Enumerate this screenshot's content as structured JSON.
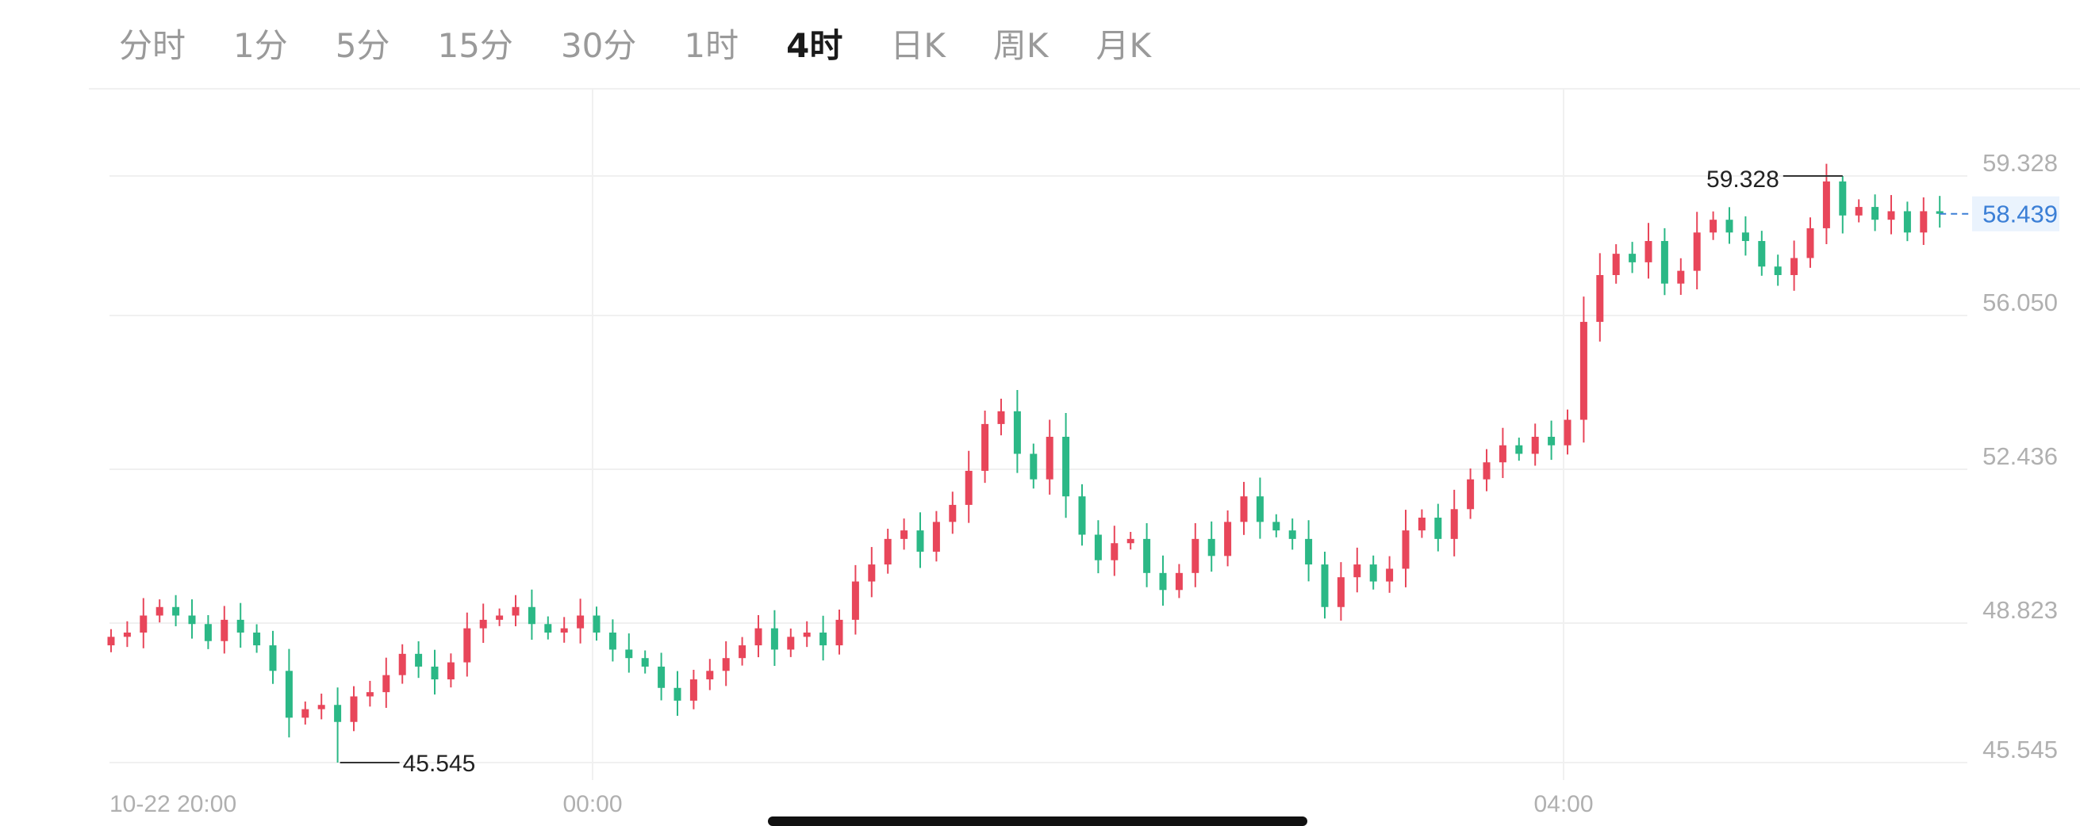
{
  "tabs": [
    {
      "label": "分时",
      "active": false
    },
    {
      "label": "1分",
      "active": false
    },
    {
      "label": "5分",
      "active": false
    },
    {
      "label": "15分",
      "active": false
    },
    {
      "label": "30分",
      "active": false
    },
    {
      "label": "1时",
      "active": false
    },
    {
      "label": "4时",
      "active": true
    },
    {
      "label": "日K",
      "active": false
    },
    {
      "label": "周K",
      "active": false
    },
    {
      "label": "月K",
      "active": false
    }
  ],
  "chart_data": {
    "type": "candlestick",
    "ylim": [
      45.545,
      59.328
    ],
    "y_ticks": [
      "59.328",
      "56.050",
      "52.436",
      "48.823",
      "45.545"
    ],
    "y_tick_values": [
      59.328,
      56.05,
      52.436,
      48.823,
      45.545
    ],
    "x_ticks": [
      "10-22 20:00",
      "00:00",
      "04:00"
    ],
    "current_price": "58.439",
    "current_price_value": 58.439,
    "high_label": "59.328",
    "low_label": "45.545",
    "colors": {
      "up": "#e8465a",
      "down": "#2bb886",
      "current": "#3b7fd6",
      "grid": "#f0f0f0",
      "axis_text": "#b0b0b0"
    },
    "closes": [
      48.5,
      48.6,
      49.0,
      49.2,
      49.0,
      48.8,
      48.4,
      48.9,
      48.6,
      48.3,
      47.7,
      46.6,
      46.8,
      46.9,
      46.5,
      47.1,
      47.2,
      47.6,
      48.1,
      47.8,
      47.5,
      47.9,
      48.7,
      48.9,
      49.0,
      49.2,
      48.8,
      48.6,
      48.7,
      49.0,
      48.6,
      48.2,
      48.0,
      47.8,
      47.3,
      47.0,
      47.5,
      47.7,
      48.0,
      48.3,
      48.7,
      48.2,
      48.5,
      48.6,
      48.3,
      48.9,
      49.8,
      50.2,
      50.8,
      51.0,
      50.5,
      51.2,
      51.6,
      52.4,
      53.5,
      53.8,
      52.8,
      52.2,
      53.2,
      51.8,
      50.9,
      50.3,
      50.7,
      50.8,
      50.0,
      49.6,
      50.0,
      50.8,
      50.4,
      51.2,
      51.8,
      51.2,
      51.0,
      50.8,
      50.2,
      49.2,
      49.9,
      50.2,
      49.8,
      50.1,
      51.0,
      51.3,
      50.8,
      51.5,
      52.2,
      52.6,
      53.0,
      52.8,
      53.2,
      53.0,
      53.6,
      55.9,
      57.0,
      57.5,
      57.3,
      57.8,
      56.8,
      57.1,
      58.0,
      58.3,
      58.0,
      57.8,
      57.2,
      57.0,
      57.4,
      58.1,
      59.2,
      58.4,
      58.6,
      58.3,
      58.5,
      58.0,
      58.5,
      58.439
    ],
    "x_tick_candle_index": [
      0,
      30,
      90
    ]
  }
}
